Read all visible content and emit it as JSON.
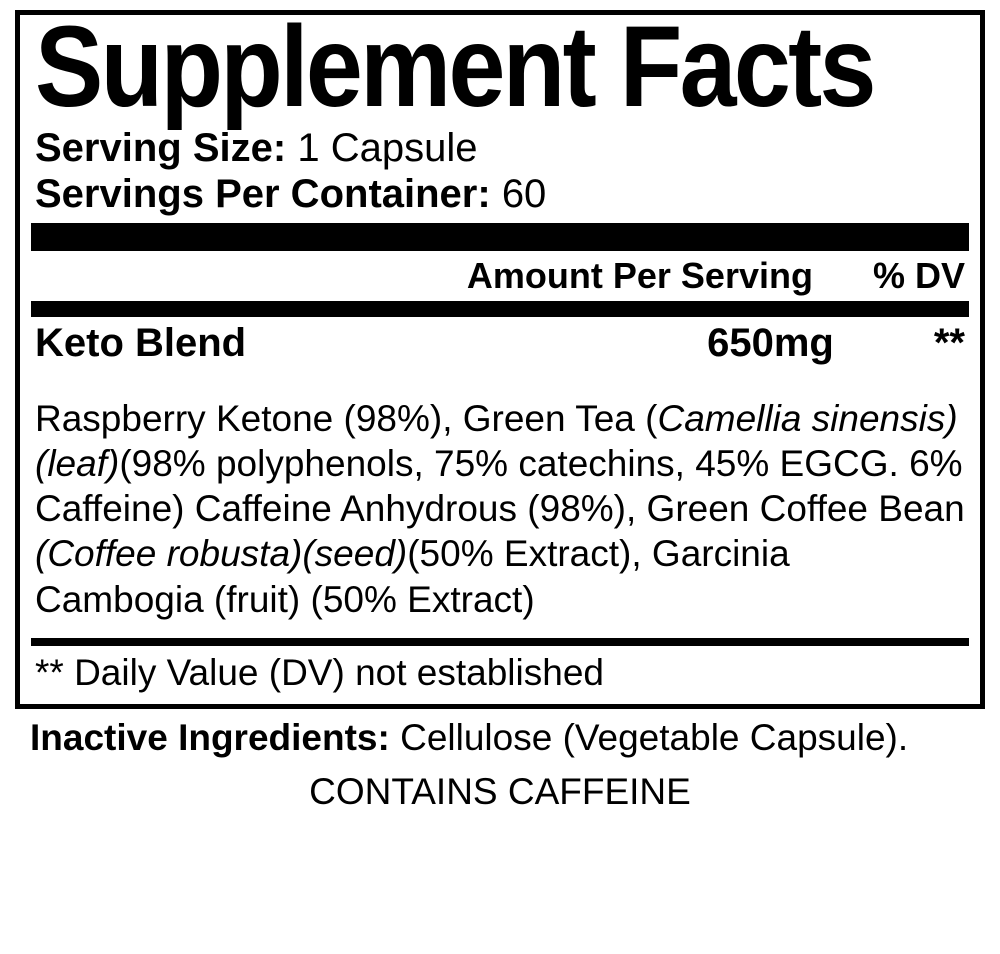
{
  "panel": {
    "title": "Supplement Facts",
    "serving_size_label": "Serving Size:",
    "serving_size_value": "1 Capsule",
    "servings_per_label": "Servings Per Container:",
    "servings_per_value": "60",
    "header_amount": "Amount Per Serving",
    "header_dv": "% DV",
    "blend_name": "Keto Blend",
    "blend_amount": "650mg",
    "blend_dv": "**",
    "ingredients_1": "Raspberry Ketone (98%), Green Tea (",
    "ingredients_italic_1": "Camellia sinensis)(leaf)",
    "ingredients_2": "(98% polyphenols, 75% catechins, 45% EGCG. 6% Caffeine) Caffeine Anhydrous (98%), Green Coffee Bean ",
    "ingredients_italic_2": "(Coffee robusta)(seed)",
    "ingredients_3": "(50% Extract), Garcinia Cambogia (fruit) (50% Extract)",
    "dv_note": "** Daily Value (DV) not established"
  },
  "below": {
    "inactive_label": "Inactive Ingredients:",
    "inactive_value": "Cellulose (Vegetable Capsule).",
    "caffeine_warning": "CONTAINS CAFFEINE"
  },
  "style": {
    "text_color": "#000000",
    "bg_color": "#ffffff",
    "border_width": 5,
    "thick_bar_height": 28,
    "med_bar_height": 16,
    "thin_bar_height": 8,
    "title_fontsize": 118,
    "body_fontsize": 37,
    "serving_fontsize": 40,
    "header_fontsize": 36
  }
}
